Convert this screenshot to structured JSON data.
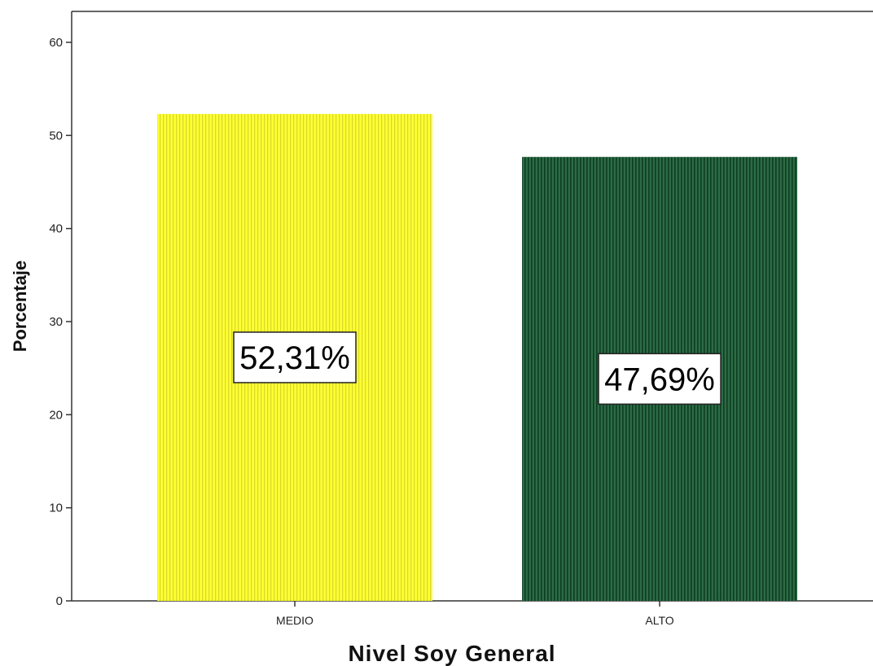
{
  "chart_data": {
    "type": "bar",
    "categories": [
      "MEDIO",
      "ALTO"
    ],
    "values": [
      52.31,
      47.69
    ],
    "data_labels": [
      "52,31%",
      "47,69%"
    ],
    "bar_colors": [
      "#ffff33",
      "#2d6b46"
    ],
    "stripe_colors": [
      "#d9d92a",
      "#0d3d20"
    ],
    "title": "",
    "xlabel": "Nivel Soy General",
    "ylabel": "Porcentaje",
    "ylim": [
      0,
      60
    ],
    "yticks": [
      0,
      10,
      20,
      30,
      40,
      50,
      60
    ],
    "grid": false,
    "legend": "none"
  }
}
